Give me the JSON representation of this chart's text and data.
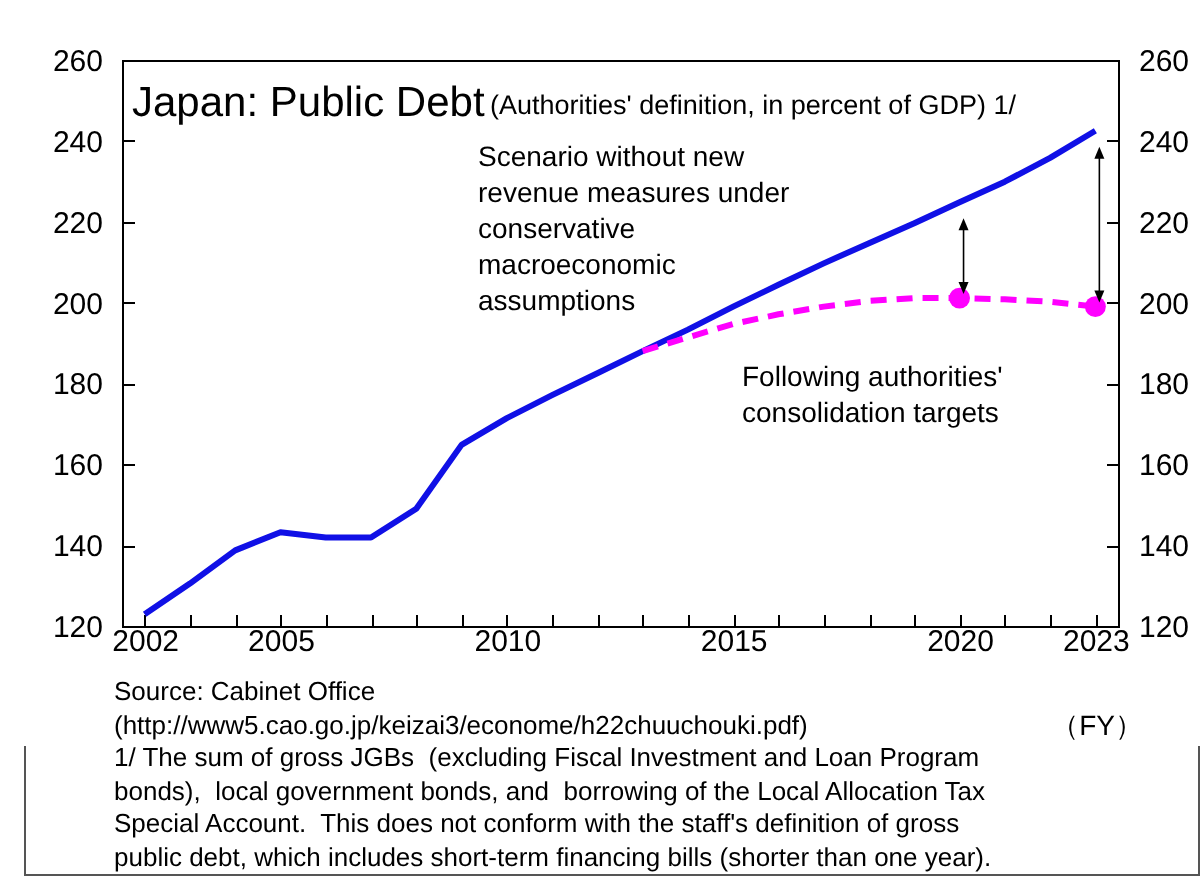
{
  "chart_data": {
    "type": "line",
    "title": "Japan: Public Debt",
    "subtitle": "(Authorities' definition, in percent of GDP) 1/",
    "xlabel": "（FY）",
    "x": [
      2002,
      2003,
      2004,
      2005,
      2006,
      2007,
      2008,
      2009,
      2010,
      2011,
      2012,
      2013,
      2014,
      2015,
      2016,
      2017,
      2018,
      2019,
      2020,
      2021,
      2022,
      2023
    ],
    "series": [
      {
        "type": "line",
        "color": "#1010e6",
        "line_style": "solid",
        "values": [
          122.9,
          130.5,
          138.7,
          143.2,
          141.9,
          141.9,
          149,
          164.8,
          171.4,
          177.1,
          182.5,
          188,
          193.3,
          199,
          204.4,
          209.7,
          214.7,
          219.6,
          224.8,
          229.9,
          235.8,
          242.5
        ]
      },
      {
        "type": "line",
        "color": "#ff00ff",
        "line_style": "dashed",
        "x": [
          2013,
          2014,
          2015,
          2016,
          2017,
          2018,
          2019,
          2020,
          2021,
          2022,
          2023
        ],
        "values": [
          188,
          191.4,
          194.7,
          197.1,
          199,
          200.4,
          201.1,
          201.1,
          200.8,
          200.2,
          199
        ]
      },
      {
        "type": "scatter",
        "color": "#ff00ff",
        "marker": "circle",
        "x": [
          2020,
          2023
        ],
        "values": [
          201.1,
          199
        ]
      }
    ],
    "xlim": [
      2001.5,
      2023.5
    ],
    "xticks": [
      2002,
      {
        "value": 2003,
        "label": null
      },
      {
        "value": 2004,
        "label": null
      },
      2005,
      {
        "value": 2006,
        "label": null
      },
      {
        "value": 2007,
        "label": null
      },
      {
        "value": 2008,
        "label": null
      },
      {
        "value": 2009,
        "label": null
      },
      2010,
      {
        "value": 2011,
        "label": null
      },
      {
        "value": 2012,
        "label": null
      },
      {
        "value": 2013,
        "label": null
      },
      {
        "value": 2014,
        "label": null
      },
      2015,
      {
        "value": 2016,
        "label": null
      },
      {
        "value": 2017,
        "label": null
      },
      {
        "value": 2018,
        "label": null
      },
      {
        "value": 2019,
        "label": null
      },
      2020,
      {
        "value": 2021,
        "label": null
      },
      {
        "value": 2022,
        "label": null
      },
      2023
    ],
    "ylim": [
      120,
      260
    ],
    "yticks": [
      120,
      140,
      160,
      180,
      200,
      220,
      240,
      260
    ],
    "y2lim": [
      120,
      260
    ],
    "y2ticks": [
      120,
      140,
      160,
      180,
      200,
      220,
      240,
      260
    ],
    "grid": false,
    "annotations": [
      "Scenario without new\nrevenue measures under\nconservative\nmacroeconomic\nassumptions",
      "Following authorities'\nconsolidation targets",
      "Source: Cabinet Office",
      "(http://www5.cao.go.jp/keizai3/econome/h22chuuchouki.pdf)",
      "1/ The sum of gross JGBs  (excluding Fiscal Investment and Loan Program\nbonds),  local government bonds, and  borrowing of the Local Allocation Tax\nSpecial Account.  This does not conform with the staff's definition of gross\npublic debt, which includes short-term financing bills (shorter than one year)."
    ]
  }
}
